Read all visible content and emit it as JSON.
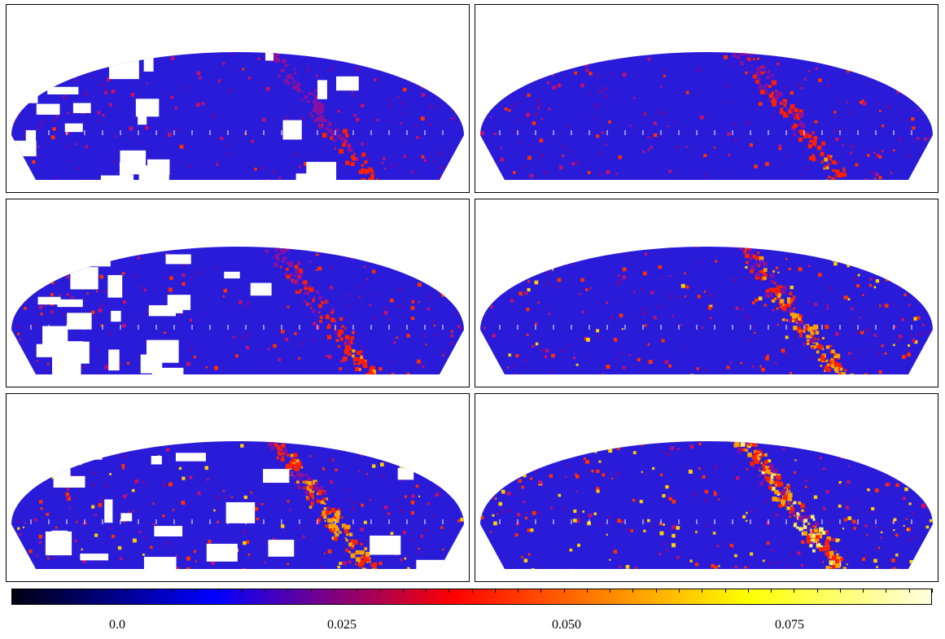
{
  "figure": {
    "panels": [
      {
        "id": "top-left",
        "masked": true,
        "seed": 11,
        "bright": 0.15
      },
      {
        "id": "top-right",
        "masked": false,
        "seed": 23,
        "bright": 0.3
      },
      {
        "id": "middle-left",
        "masked": true,
        "seed": 37,
        "bright": 0.3
      },
      {
        "id": "middle-right",
        "masked": false,
        "seed": 41,
        "bright": 0.55
      },
      {
        "id": "bottom-left",
        "masked": true,
        "seed": 53,
        "bright": 0.55
      },
      {
        "id": "bottom-right",
        "masked": false,
        "seed": 67,
        "bright": 0.85
      }
    ],
    "projection": "mollweide-like sky map",
    "colormap": [
      "#000010",
      "#0000ff",
      "#ff0000",
      "#ffff00",
      "#ffffe0"
    ]
  },
  "colorbar": {
    "range": [
      -0.01,
      0.09
    ],
    "tick_labels": [
      "0.0",
      "0.025",
      "0.050",
      "0.075"
    ]
  }
}
